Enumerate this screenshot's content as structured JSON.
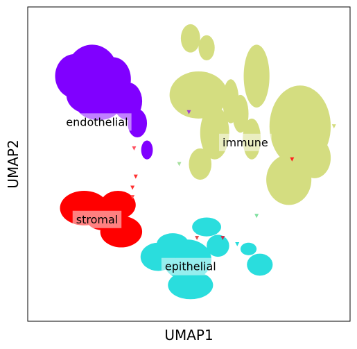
{
  "chart_data": {
    "type": "scatter",
    "title": "",
    "xlabel": "UMAP1",
    "ylabel": "UMAP2",
    "xticks": [],
    "yticks": [],
    "xlim": [
      0,
      100
    ],
    "ylim": [
      0,
      100
    ],
    "grid": false,
    "series": [
      {
        "name": "endothelial",
        "color": "#8000ff",
        "blobs": [
          {
            "cx": 14.5,
            "cy": 78.0,
            "rx": 6.0,
            "ry": 7.0
          },
          {
            "cx": 20.0,
            "cy": 79.0,
            "rx": 8.0,
            "ry": 9.0
          },
          {
            "cx": 26.5,
            "cy": 77.0,
            "rx": 5.5,
            "ry": 7.0
          },
          {
            "cx": 31.0,
            "cy": 70.0,
            "rx": 4.5,
            "ry": 6.0
          },
          {
            "cx": 34.0,
            "cy": 63.0,
            "rx": 3.0,
            "ry": 4.5
          },
          {
            "cx": 37.0,
            "cy": 54.5,
            "rx": 1.8,
            "ry": 3.0
          },
          {
            "cx": 22.0,
            "cy": 69.0,
            "rx": 7.0,
            "ry": 5.0
          },
          {
            "cx": 19.0,
            "cy": 72.0,
            "rx": 7.0,
            "ry": 6.0
          }
        ]
      },
      {
        "name": "stromal",
        "color": "#ff0000",
        "blobs": [
          {
            "cx": 17.5,
            "cy": 36.0,
            "rx": 7.5,
            "ry": 5.5
          },
          {
            "cx": 28.0,
            "cy": 37.0,
            "rx": 5.5,
            "ry": 4.5
          },
          {
            "cx": 29.0,
            "cy": 28.5,
            "rx": 6.5,
            "ry": 5.0
          },
          {
            "cx": 23.0,
            "cy": 33.0,
            "rx": 5.0,
            "ry": 4.0
          }
        ]
      },
      {
        "name": "immune",
        "color": "#d4dd80",
        "blobs": [
          {
            "cx": 50.5,
            "cy": 90.0,
            "rx": 3.0,
            "ry": 4.5
          },
          {
            "cx": 55.5,
            "cy": 87.0,
            "rx": 2.5,
            "ry": 4.0
          },
          {
            "cx": 53.0,
            "cy": 72.0,
            "rx": 9.0,
            "ry": 7.5
          },
          {
            "cx": 58.0,
            "cy": 60.0,
            "rx": 4.5,
            "ry": 8.5
          },
          {
            "cx": 53.5,
            "cy": 50.0,
            "rx": 3.5,
            "ry": 5.0
          },
          {
            "cx": 63.0,
            "cy": 70.0,
            "rx": 2.5,
            "ry": 7.0
          },
          {
            "cx": 71.0,
            "cy": 78.0,
            "rx": 4.0,
            "ry": 10.0
          },
          {
            "cx": 69.5,
            "cy": 58.0,
            "rx": 2.8,
            "ry": 6.5
          },
          {
            "cx": 84.5,
            "cy": 62.0,
            "rx": 9.5,
            "ry": 13.0
          },
          {
            "cx": 81.0,
            "cy": 45.0,
            "rx": 7.0,
            "ry": 8.0
          },
          {
            "cx": 89.0,
            "cy": 52.0,
            "rx": 5.0,
            "ry": 6.5
          },
          {
            "cx": 66.0,
            "cy": 66.0,
            "rx": 2.5,
            "ry": 6.0
          }
        ]
      },
      {
        "name": "epithelial",
        "color": "#2adddd",
        "blobs": [
          {
            "cx": 55.5,
            "cy": 30.0,
            "rx": 4.5,
            "ry": 3.0
          },
          {
            "cx": 59.0,
            "cy": 24.0,
            "rx": 3.5,
            "ry": 3.5
          },
          {
            "cx": 49.5,
            "cy": 19.5,
            "rx": 7.5,
            "ry": 6.5
          },
          {
            "cx": 50.5,
            "cy": 11.5,
            "rx": 7.0,
            "ry": 4.5
          },
          {
            "cx": 40.5,
            "cy": 20.5,
            "rx": 5.5,
            "ry": 4.5
          },
          {
            "cx": 45.0,
            "cy": 24.5,
            "rx": 5.0,
            "ry": 3.5
          },
          {
            "cx": 68.5,
            "cy": 23.0,
            "rx": 2.5,
            "ry": 2.0
          },
          {
            "cx": 72.0,
            "cy": 18.0,
            "rx": 4.0,
            "ry": 3.5
          }
        ]
      }
    ],
    "annotations": [
      {
        "text": "endothelial",
        "x": 21.5,
        "y": 63.5
      },
      {
        "text": "immune",
        "x": 67.5,
        "y": 57.0
      },
      {
        "text": "stromal",
        "x": 21.5,
        "y": 32.5
      },
      {
        "text": "epithelial",
        "x": 50.5,
        "y": 17.5
      }
    ],
    "outliers": [
      {
        "x": 50.0,
        "y": 66.5,
        "color": "#a03fd0"
      },
      {
        "x": 33.0,
        "y": 55.0,
        "color": "#ff5060"
      },
      {
        "x": 33.5,
        "y": 46.0,
        "color": "#ff3030"
      },
      {
        "x": 32.5,
        "y": 42.5,
        "color": "#ff3030"
      },
      {
        "x": 32.5,
        "y": 39.5,
        "color": "#ff5050"
      },
      {
        "x": 82.0,
        "y": 51.5,
        "color": "#ff2020"
      },
      {
        "x": 52.5,
        "y": 26.5,
        "color": "#e05050"
      },
      {
        "x": 47.0,
        "y": 50.0,
        "color": "#a8e0a0"
      },
      {
        "x": 71.0,
        "y": 33.5,
        "color": "#80e0a0"
      },
      {
        "x": 60.5,
        "y": 26.5,
        "color": "#c83050"
      },
      {
        "x": 65.0,
        "y": 24.5,
        "color": "#2adddd"
      },
      {
        "x": 95.0,
        "y": 62.0,
        "color": "#d4dd80"
      }
    ]
  }
}
